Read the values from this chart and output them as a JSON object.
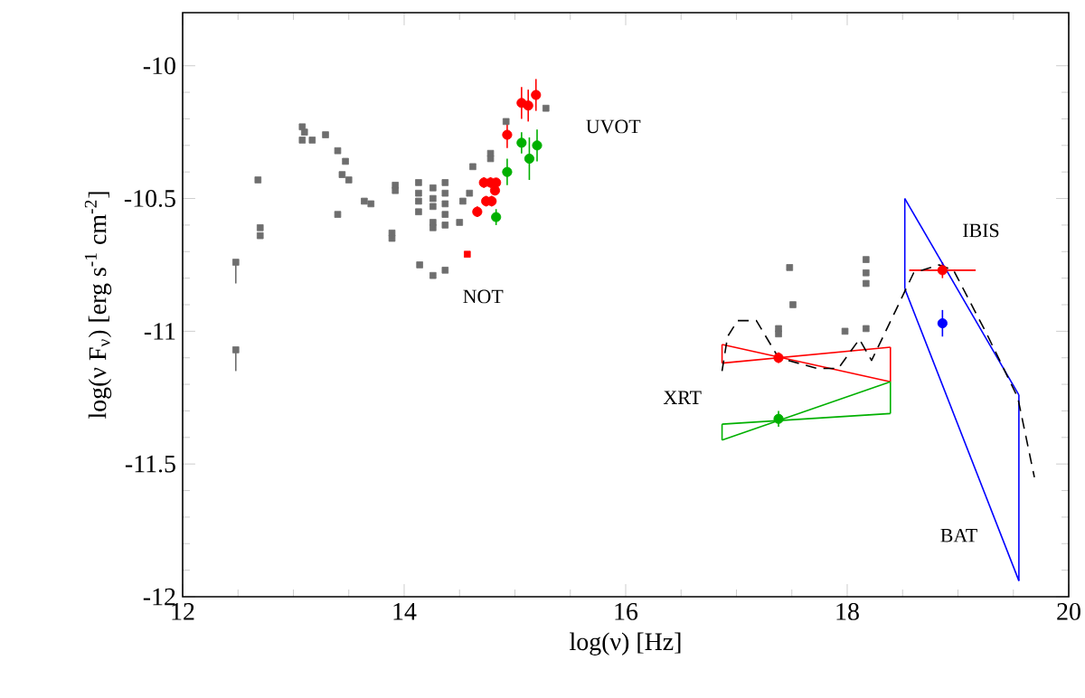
{
  "chart_data": {
    "type": "scatter",
    "xlabel": "log(ν) [Hz]",
    "ylabel": "log(ν F$_{ν}$) [erg s$^{-1}$ cm$^{-2}$]",
    "xlim": [
      12,
      20
    ],
    "ylim": [
      -12,
      -9.8
    ],
    "xticks": [
      12,
      14,
      16,
      18,
      20
    ],
    "yticks": [
      -12,
      -11.5,
      -11,
      -10.5,
      -10
    ],
    "series": [
      {
        "color": "#6e6e6e",
        "marker": "square",
        "x": [
          12.48,
          12.48,
          12.68,
          12.7,
          12.7,
          13.08,
          13.1,
          13.08,
          13.17,
          13.29,
          13.4,
          13.47,
          13.44,
          13.5,
          13.4,
          13.64,
          13.7,
          13.89,
          13.89,
          13.92,
          13.92,
          14.13,
          14.13,
          14.13,
          14.13,
          14.26,
          14.26,
          14.26,
          14.26,
          14.26,
          14.37,
          14.37,
          14.37,
          14.37,
          14.37,
          14.5,
          14.53,
          14.59,
          14.62,
          14.14,
          14.26,
          14.37,
          14.78,
          14.78,
          14.92,
          15.28,
          17.48,
          17.51,
          17.38,
          17.38,
          17.98,
          18.17,
          18.17,
          18.17,
          18.17
        ],
        "values": [
          -10.74,
          -11.07,
          -10.43,
          -10.61,
          -10.64,
          -10.23,
          -10.25,
          -10.28,
          -10.28,
          -10.26,
          -10.32,
          -10.36,
          -10.41,
          -10.43,
          -10.56,
          -10.51,
          -10.52,
          -10.63,
          -10.65,
          -10.45,
          -10.47,
          -10.44,
          -10.48,
          -10.51,
          -10.55,
          -10.46,
          -10.5,
          -10.53,
          -10.59,
          -10.61,
          -10.44,
          -10.48,
          -10.52,
          -10.56,
          -10.6,
          -10.59,
          -10.51,
          -10.48,
          -10.38,
          -10.75,
          -10.79,
          -10.77,
          -10.33,
          -10.35,
          -10.21,
          -10.16,
          -10.76,
          -10.9,
          -10.99,
          -11.01,
          -11.0,
          -10.73,
          -10.78,
          -10.82,
          -10.99
        ],
        "errors": [
          [
            -10.82,
            -10.74
          ],
          [
            -11.15,
            -11.07
          ],
          null,
          null,
          null,
          null,
          null,
          null,
          null,
          null,
          null,
          null,
          null,
          null,
          null,
          null,
          null,
          null,
          null,
          null,
          null,
          null,
          null,
          null,
          null,
          null,
          null,
          null,
          null,
          null,
          null,
          null,
          null,
          null,
          null,
          null,
          null,
          null,
          null,
          null,
          null,
          null,
          null,
          null,
          null,
          null,
          null,
          null,
          null,
          null,
          null,
          null,
          null,
          null,
          null
        ]
      },
      {
        "color": "#ff0000",
        "marker": "circle",
        "x": [
          14.66,
          14.74,
          14.79,
          14.72,
          14.78,
          14.83,
          14.82,
          14.93,
          15.06,
          15.12,
          15.19
        ],
        "values": [
          -10.55,
          -10.51,
          -10.51,
          -10.44,
          -10.44,
          -10.44,
          -10.47,
          -10.26,
          -10.14,
          -10.15,
          -10.11
        ],
        "errors": [
          0.02,
          0.02,
          0.02,
          0.02,
          0.02,
          null,
          null,
          0.05,
          0.06,
          0.06,
          0.06
        ]
      },
      {
        "color": "#00b000",
        "marker": "circle",
        "x": [
          14.83,
          14.93,
          15.06,
          15.13,
          15.2
        ],
        "values": [
          -10.57,
          -10.4,
          -10.29,
          -10.35,
          -10.3
        ],
        "errors": [
          0.03,
          0.05,
          0.04,
          0.08,
          0.06
        ]
      },
      {
        "color": "#ff0000",
        "marker": "square",
        "x": [
          14.57
        ],
        "values": [
          -10.71
        ]
      },
      {
        "color": "#ff0000",
        "marker": "circle",
        "x": [
          17.38,
          18.86
        ],
        "values": [
          -11.1,
          -10.77
        ],
        "errors": [
          0.02,
          0.03
        ],
        "xerrors": [
          null,
          0.3
        ]
      },
      {
        "color": "#00b000",
        "marker": "circle",
        "x": [
          17.38
        ],
        "values": [
          -11.33
        ],
        "errors": [
          0.03
        ]
      },
      {
        "color": "#0000ff",
        "marker": "circle",
        "x": [
          18.86
        ],
        "values": [
          -10.97
        ],
        "errors": [
          0.05
        ]
      },
      {
        "type": "line",
        "color": "#ff0000",
        "line_style": "solid",
        "x": [
          16.87,
          18.39
        ],
        "values": [
          -11.05,
          -11.19
        ],
        "errors": [
          [
            -11.12,
            -11.05
          ],
          [
            -11.19,
            -11.06
          ]
        ]
      },
      {
        "type": "line",
        "color": "#ff0000",
        "line_style": "solid",
        "x": [
          16.87,
          18.39
        ],
        "values": [
          -11.12,
          -11.06
        ]
      },
      {
        "type": "line",
        "color": "#00b000",
        "line_style": "solid",
        "x": [
          16.87,
          18.39
        ],
        "values": [
          -11.35,
          -11.31
        ],
        "errors": [
          [
            -11.41,
            -11.35
          ],
          [
            -11.31,
            -11.19
          ]
        ]
      },
      {
        "type": "line",
        "color": "#00b000",
        "line_style": "solid",
        "x": [
          16.87,
          18.39
        ],
        "values": [
          -11.41,
          -11.19
        ]
      },
      {
        "type": "line",
        "color": "#0000ff",
        "line_style": "solid",
        "x": [
          18.52,
          19.55
        ],
        "values": [
          -10.5,
          -11.24
        ],
        "errors": [
          [
            -10.84,
            -10.5
          ],
          [
            -11.94,
            -11.24
          ]
        ]
      },
      {
        "type": "line",
        "color": "#0000ff",
        "line_style": "solid",
        "x": [
          18.52,
          19.55
        ],
        "values": [
          -10.84,
          -11.94
        ]
      },
      {
        "type": "line",
        "color": "#000000",
        "line_style": "dashed",
        "x": [
          16.87,
          16.92,
          17.01,
          17.18,
          17.38,
          17.73,
          17.92,
          18.11,
          18.22,
          18.44,
          18.6,
          18.83,
          18.96,
          19.26,
          19.54,
          19.69
        ],
        "values": [
          -11.15,
          -11.02,
          -10.96,
          -10.96,
          -11.1,
          -11.14,
          -11.14,
          -11.03,
          -11.11,
          -10.92,
          -10.78,
          -10.75,
          -10.77,
          -11.01,
          -11.25,
          -11.55
        ]
      }
    ],
    "annotations": [
      "UVOT",
      "NOT",
      "XRT",
      "IBIS",
      "BAT"
    ]
  }
}
